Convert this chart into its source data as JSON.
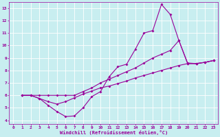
{
  "xlabel": "Windchill (Refroidissement éolien,°C)",
  "bg_color": "#c8eef0",
  "grid_color": "#ffffff",
  "line_color": "#990099",
  "xlim": [
    -0.5,
    23.5
  ],
  "ylim": [
    3.7,
    13.5
  ],
  "xticks": [
    0,
    1,
    2,
    3,
    4,
    5,
    6,
    7,
    8,
    9,
    10,
    11,
    12,
    13,
    14,
    15,
    16,
    17,
    18,
    19,
    20,
    21,
    22,
    23
  ],
  "yticks": [
    4,
    5,
    6,
    7,
    8,
    9,
    10,
    11,
    12,
    13
  ],
  "line1_x": [
    1,
    2,
    3,
    4,
    5,
    6,
    7,
    8,
    9,
    10,
    11,
    12,
    13,
    14,
    15,
    16,
    17,
    18,
    19,
    20,
    21,
    22,
    23
  ],
  "line1_y": [
    6.0,
    6.0,
    5.75,
    5.2,
    4.7,
    4.3,
    4.35,
    5.0,
    5.9,
    6.3,
    7.5,
    8.3,
    8.5,
    9.7,
    11.0,
    11.2,
    13.3,
    12.5,
    10.4,
    8.6,
    8.55,
    8.65,
    8.8
  ],
  "line2_x": [
    1,
    2,
    3,
    4,
    5,
    6,
    7,
    8,
    9,
    10,
    11,
    12,
    13,
    14,
    15,
    16,
    17,
    18,
    19,
    20,
    21,
    22,
    23
  ],
  "line2_y": [
    6.0,
    6.0,
    6.0,
    6.0,
    6.0,
    6.0,
    6.0,
    6.3,
    6.6,
    7.0,
    7.3,
    7.6,
    7.9,
    8.2,
    8.6,
    9.0,
    9.3,
    9.6,
    10.4,
    8.55,
    8.55,
    8.65,
    8.8
  ],
  "line3_x": [
    1,
    2,
    3,
    4,
    5,
    6,
    7,
    8,
    9,
    10,
    11,
    12,
    13,
    14,
    15,
    16,
    17,
    18,
    19,
    20,
    21,
    22,
    23
  ],
  "line3_y": [
    6.0,
    6.0,
    5.75,
    5.5,
    5.3,
    5.5,
    5.8,
    6.1,
    6.35,
    6.6,
    6.75,
    6.95,
    7.15,
    7.4,
    7.6,
    7.8,
    8.0,
    8.2,
    8.4,
    8.55,
    8.55,
    8.65,
    8.8
  ],
  "markersize": 2,
  "linewidth": 0.8
}
